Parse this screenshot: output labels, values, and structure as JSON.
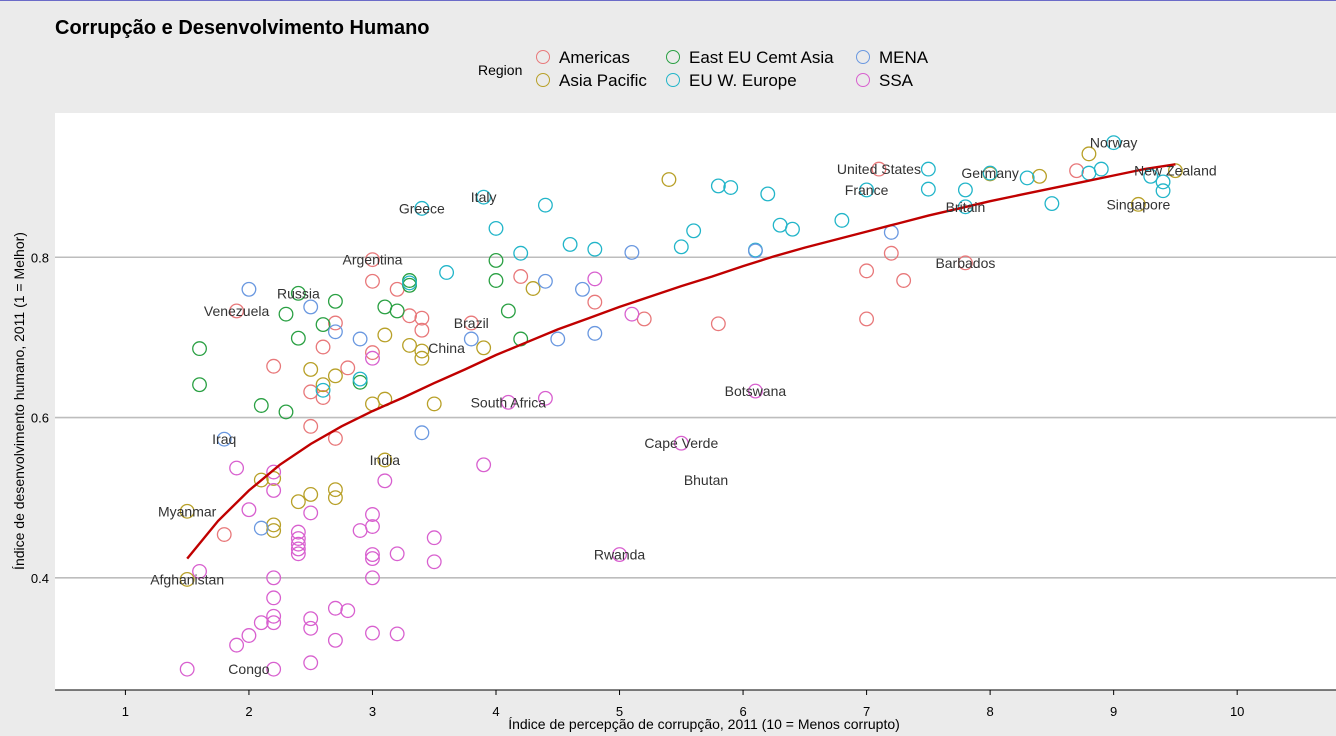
{
  "title": "Corrupção e Desenvolvimento Humano",
  "legend": {
    "title": "Region",
    "items": [
      {
        "name": "Americas",
        "color": "#e8787a"
      },
      {
        "name": "Asia Pacific",
        "color": "#b8a028"
      },
      {
        "name": "East EU Cemt Asia",
        "color": "#2aa043"
      },
      {
        "name": "EU W. Europe",
        "color": "#22b5c9"
      },
      {
        "name": "MENA",
        "color": "#6a98e0"
      },
      {
        "name": "SSA",
        "color": "#d860cf"
      }
    ]
  },
  "chart_data": {
    "type": "scatter",
    "title": "Corrupção e Desenvolvimento Humano",
    "xlabel": "Índice de percepção de corrupção, 2011 (10 = Menos corrupto)",
    "ylabel": "Índice de desenvolvimento humano, 2011 (1 = Melhor)",
    "xlim": [
      0.43,
      10.8
    ],
    "ylim": [
      0.26,
      0.98
    ],
    "xticks": [
      1,
      2,
      3,
      4,
      5,
      6,
      7,
      8,
      9,
      10
    ],
    "yticks": [
      0.4,
      0.6,
      0.8
    ],
    "ytick_labels": [
      "0.4",
      "0.6",
      "0.8"
    ],
    "grid": "horizontal-major",
    "legend_position": "top",
    "colors": {
      "Americas": "#e8787a",
      "Asia Pacific": "#b8a028",
      "East EU Cemt Asia": "#2aa043",
      "EU W. Europe": "#22b5c9",
      "MENA": "#6a98e0",
      "SSA": "#d860cf"
    },
    "points": [
      [
        "Americas",
        1.9,
        0.733
      ],
      [
        "Americas",
        1.8,
        0.454
      ],
      [
        "Americas",
        2.2,
        0.664
      ],
      [
        "Americas",
        2.5,
        0.632
      ],
      [
        "Americas",
        2.5,
        0.589
      ],
      [
        "Americas",
        2.6,
        0.688
      ],
      [
        "Americas",
        2.6,
        0.625
      ],
      [
        "Americas",
        2.7,
        0.574
      ],
      [
        "Americas",
        2.7,
        0.718
      ],
      [
        "Americas",
        2.8,
        0.662
      ],
      [
        "Americas",
        3.0,
        0.797
      ],
      [
        "Americas",
        3.0,
        0.77
      ],
      [
        "Americas",
        3.0,
        0.681
      ],
      [
        "Americas",
        3.2,
        0.76
      ],
      [
        "Americas",
        3.3,
        0.727
      ],
      [
        "Americas",
        3.4,
        0.709
      ],
      [
        "Americas",
        3.4,
        0.724
      ],
      [
        "Americas",
        3.8,
        0.718
      ],
      [
        "Americas",
        4.2,
        0.776
      ],
      [
        "Americas",
        4.8,
        0.744
      ],
      [
        "Americas",
        5.2,
        0.723
      ],
      [
        "Americas",
        5.8,
        0.717
      ],
      [
        "Americas",
        7.0,
        0.783
      ],
      [
        "Americas",
        7.0,
        0.723
      ],
      [
        "Americas",
        7.1,
        0.91
      ],
      [
        "Americas",
        7.2,
        0.805
      ],
      [
        "Americas",
        7.3,
        0.771
      ],
      [
        "Americas",
        7.8,
        0.793
      ],
      [
        "Americas",
        8.7,
        0.908
      ],
      [
        "Asia Pacific",
        1.5,
        0.483
      ],
      [
        "Asia Pacific",
        1.5,
        0.398
      ],
      [
        "Asia Pacific",
        2.1,
        0.522
      ],
      [
        "Asia Pacific",
        2.2,
        0.459
      ],
      [
        "Asia Pacific",
        2.2,
        0.466
      ],
      [
        "Asia Pacific",
        2.2,
        0.524
      ],
      [
        "Asia Pacific",
        2.4,
        0.495
      ],
      [
        "Asia Pacific",
        2.5,
        0.66
      ],
      [
        "Asia Pacific",
        2.5,
        0.504
      ],
      [
        "Asia Pacific",
        2.6,
        0.641
      ],
      [
        "Asia Pacific",
        2.7,
        0.652
      ],
      [
        "Asia Pacific",
        2.7,
        0.51
      ],
      [
        "Asia Pacific",
        2.7,
        0.5
      ],
      [
        "Asia Pacific",
        3.0,
        0.617
      ],
      [
        "Asia Pacific",
        3.1,
        0.703
      ],
      [
        "Asia Pacific",
        3.1,
        0.547
      ],
      [
        "Asia Pacific",
        3.1,
        0.623
      ],
      [
        "Asia Pacific",
        3.3,
        0.69
      ],
      [
        "Asia Pacific",
        3.4,
        0.674
      ],
      [
        "Asia Pacific",
        3.4,
        0.683
      ],
      [
        "Asia Pacific",
        3.5,
        0.617
      ],
      [
        "Asia Pacific",
        3.9,
        0.687
      ],
      [
        "Asia Pacific",
        4.3,
        0.761
      ],
      [
        "Asia Pacific",
        5.4,
        0.897
      ],
      [
        "Asia Pacific",
        8.0,
        0.904
      ],
      [
        "Asia Pacific",
        8.4,
        0.901
      ],
      [
        "Asia Pacific",
        8.8,
        0.929
      ],
      [
        "Asia Pacific",
        9.2,
        0.866
      ],
      [
        "Asia Pacific",
        9.5,
        0.908
      ],
      [
        "East EU Cemt Asia",
        1.6,
        0.686
      ],
      [
        "East EU Cemt Asia",
        1.6,
        0.641
      ],
      [
        "East EU Cemt Asia",
        2.1,
        0.615
      ],
      [
        "East EU Cemt Asia",
        2.3,
        0.607
      ],
      [
        "East EU Cemt Asia",
        2.3,
        0.729
      ],
      [
        "East EU Cemt Asia",
        2.4,
        0.699
      ],
      [
        "East EU Cemt Asia",
        2.4,
        0.755
      ],
      [
        "East EU Cemt Asia",
        2.6,
        0.716
      ],
      [
        "East EU Cemt Asia",
        2.7,
        0.745
      ],
      [
        "East EU Cemt Asia",
        2.9,
        0.644
      ],
      [
        "East EU Cemt Asia",
        3.1,
        0.738
      ],
      [
        "East EU Cemt Asia",
        3.2,
        0.733
      ],
      [
        "East EU Cemt Asia",
        3.3,
        0.765
      ],
      [
        "East EU Cemt Asia",
        3.3,
        0.771
      ],
      [
        "East EU Cemt Asia",
        4.0,
        0.771
      ],
      [
        "East EU Cemt Asia",
        4.0,
        0.796
      ],
      [
        "East EU Cemt Asia",
        4.1,
        0.733
      ],
      [
        "East EU Cemt Asia",
        4.2,
        0.698
      ],
      [
        "EU W. Europe",
        2.6,
        0.634
      ],
      [
        "EU W. Europe",
        2.9,
        0.648
      ],
      [
        "EU W. Europe",
        3.3,
        0.768
      ],
      [
        "EU W. Europe",
        3.4,
        0.861
      ],
      [
        "EU W. Europe",
        3.6,
        0.781
      ],
      [
        "EU W. Europe",
        3.9,
        0.875
      ],
      [
        "EU W. Europe",
        4.0,
        0.836
      ],
      [
        "EU W. Europe",
        4.2,
        0.805
      ],
      [
        "EU W. Europe",
        4.4,
        0.865
      ],
      [
        "EU W. Europe",
        4.6,
        0.816
      ],
      [
        "EU W. Europe",
        4.8,
        0.81
      ],
      [
        "EU W. Europe",
        5.5,
        0.813
      ],
      [
        "EU W. Europe",
        5.6,
        0.833
      ],
      [
        "EU W. Europe",
        5.8,
        0.889
      ],
      [
        "EU W. Europe",
        5.9,
        0.887
      ],
      [
        "EU W. Europe",
        6.1,
        0.809
      ],
      [
        "EU W. Europe",
        6.2,
        0.879
      ],
      [
        "EU W. Europe",
        6.3,
        0.84
      ],
      [
        "EU W. Europe",
        6.4,
        0.835
      ],
      [
        "EU W. Europe",
        6.8,
        0.846
      ],
      [
        "EU W. Europe",
        7.0,
        0.884
      ],
      [
        "EU W. Europe",
        7.5,
        0.885
      ],
      [
        "EU W. Europe",
        7.5,
        0.91
      ],
      [
        "EU W. Europe",
        7.8,
        0.863
      ],
      [
        "EU W. Europe",
        7.8,
        0.884
      ],
      [
        "EU W. Europe",
        8.0,
        0.905
      ],
      [
        "EU W. Europe",
        8.3,
        0.899
      ],
      [
        "EU W. Europe",
        8.5,
        0.867
      ],
      [
        "EU W. Europe",
        8.8,
        0.905
      ],
      [
        "EU W. Europe",
        8.9,
        0.91
      ],
      [
        "EU W. Europe",
        9.0,
        0.943
      ],
      [
        "EU W. Europe",
        9.3,
        0.901
      ],
      [
        "EU W. Europe",
        9.4,
        0.894
      ],
      [
        "EU W. Europe",
        9.4,
        0.883
      ],
      [
        "MENA",
        1.8,
        0.573
      ],
      [
        "MENA",
        2.0,
        0.76
      ],
      [
        "MENA",
        2.1,
        0.462
      ],
      [
        "MENA",
        2.5,
        0.738
      ],
      [
        "MENA",
        2.7,
        0.707
      ],
      [
        "MENA",
        2.9,
        0.698
      ],
      [
        "MENA",
        3.4,
        0.581
      ],
      [
        "MENA",
        3.8,
        0.698
      ],
      [
        "MENA",
        4.4,
        0.77
      ],
      [
        "MENA",
        4.5,
        0.698
      ],
      [
        "MENA",
        4.7,
        0.76
      ],
      [
        "MENA",
        4.8,
        0.705
      ],
      [
        "MENA",
        5.1,
        0.806
      ],
      [
        "MENA",
        6.1,
        0.808
      ],
      [
        "MENA",
        7.2,
        0.831
      ],
      [
        "SSA",
        1.5,
        0.286
      ],
      [
        "SSA",
        1.6,
        0.408
      ],
      [
        "SSA",
        1.9,
        0.537
      ],
      [
        "SSA",
        1.9,
        0.316
      ],
      [
        "SSA",
        2.0,
        0.328
      ],
      [
        "SSA",
        2.0,
        0.485
      ],
      [
        "SSA",
        2.1,
        0.344
      ],
      [
        "SSA",
        2.2,
        0.286
      ],
      [
        "SSA",
        2.2,
        0.344
      ],
      [
        "SSA",
        2.2,
        0.352
      ],
      [
        "SSA",
        2.2,
        0.375
      ],
      [
        "SSA",
        2.2,
        0.4
      ],
      [
        "SSA",
        2.2,
        0.509
      ],
      [
        "SSA",
        2.2,
        0.532
      ],
      [
        "SSA",
        2.4,
        0.43
      ],
      [
        "SSA",
        2.4,
        0.436
      ],
      [
        "SSA",
        2.4,
        0.442
      ],
      [
        "SSA",
        2.4,
        0.449
      ],
      [
        "SSA",
        2.4,
        0.457
      ],
      [
        "SSA",
        2.5,
        0.294
      ],
      [
        "SSA",
        2.5,
        0.337
      ],
      [
        "SSA",
        2.5,
        0.349
      ],
      [
        "SSA",
        2.5,
        0.481
      ],
      [
        "SSA",
        2.7,
        0.322
      ],
      [
        "SSA",
        2.7,
        0.362
      ],
      [
        "SSA",
        2.8,
        0.359
      ],
      [
        "SSA",
        2.9,
        0.459
      ],
      [
        "SSA",
        3.0,
        0.331
      ],
      [
        "SSA",
        3.0,
        0.4
      ],
      [
        "SSA",
        3.0,
        0.424
      ],
      [
        "SSA",
        3.0,
        0.429
      ],
      [
        "SSA",
        3.0,
        0.464
      ],
      [
        "SSA",
        3.0,
        0.479
      ],
      [
        "SSA",
        3.0,
        0.674
      ],
      [
        "SSA",
        3.1,
        0.521
      ],
      [
        "SSA",
        3.2,
        0.33
      ],
      [
        "SSA",
        3.2,
        0.43
      ],
      [
        "SSA",
        3.5,
        0.42
      ],
      [
        "SSA",
        3.5,
        0.45
      ],
      [
        "SSA",
        3.9,
        0.541
      ],
      [
        "SSA",
        4.1,
        0.619
      ],
      [
        "SSA",
        4.4,
        0.624
      ],
      [
        "SSA",
        4.8,
        0.773
      ],
      [
        "SSA",
        5.0,
        0.429
      ],
      [
        "SSA",
        5.1,
        0.729
      ],
      [
        "SSA",
        5.5,
        0.568
      ],
      [
        "SSA",
        6.1,
        0.633
      ]
    ],
    "point_labels": [
      {
        "text": "Norway",
        "x": 9.0,
        "y": 0.943
      },
      {
        "text": "United States",
        "x": 7.1,
        "y": 0.91
      },
      {
        "text": "Germany",
        "x": 8.0,
        "y": 0.905
      },
      {
        "text": "New Zealand",
        "x": 9.5,
        "y": 0.908
      },
      {
        "text": "France",
        "x": 7.0,
        "y": 0.884
      },
      {
        "text": "Britain",
        "x": 7.8,
        "y": 0.863
      },
      {
        "text": "Singapore",
        "x": 9.2,
        "y": 0.866
      },
      {
        "text": "Italy",
        "x": 3.9,
        "y": 0.875
      },
      {
        "text": "Greece",
        "x": 3.4,
        "y": 0.861
      },
      {
        "text": "Argentina",
        "x": 3.0,
        "y": 0.797
      },
      {
        "text": "Barbados",
        "x": 7.8,
        "y": 0.793
      },
      {
        "text": "Russia",
        "x": 2.4,
        "y": 0.755
      },
      {
        "text": "Venezuela",
        "x": 1.9,
        "y": 0.733
      },
      {
        "text": "Brazil",
        "x": 3.8,
        "y": 0.718
      },
      {
        "text": "China",
        "x": 3.6,
        "y": 0.687
      },
      {
        "text": "Botswana",
        "x": 6.1,
        "y": 0.633
      },
      {
        "text": "South Africa",
        "x": 4.1,
        "y": 0.619
      },
      {
        "text": "Iraq",
        "x": 1.8,
        "y": 0.573
      },
      {
        "text": "Cape Verde",
        "x": 5.5,
        "y": 0.568
      },
      {
        "text": "India",
        "x": 3.1,
        "y": 0.547
      },
      {
        "text": "Bhutan",
        "x": 5.7,
        "y": 0.522
      },
      {
        "text": "Myanmar",
        "x": 1.5,
        "y": 0.483
      },
      {
        "text": "Rwanda",
        "x": 5.0,
        "y": 0.429
      },
      {
        "text": "Afghanistan",
        "x": 1.5,
        "y": 0.398
      },
      {
        "text": "Congo",
        "x": 2.0,
        "y": 0.286
      }
    ],
    "trend_line": {
      "color": "#c00000",
      "x": [
        1.5,
        1.75,
        2.0,
        2.25,
        2.5,
        2.75,
        3.0,
        3.25,
        3.5,
        3.75,
        4.0,
        4.25,
        4.5,
        4.75,
        5.0,
        5.25,
        5.5,
        5.75,
        6.0,
        6.25,
        6.5,
        6.75,
        7.0,
        7.25,
        7.5,
        7.75,
        8.0,
        8.25,
        8.5,
        8.75,
        9.0,
        9.25,
        9.5
      ],
      "y": [
        0.424,
        0.471,
        0.509,
        0.541,
        0.567,
        0.589,
        0.608,
        0.625,
        0.643,
        0.66,
        0.678,
        0.694,
        0.71,
        0.724,
        0.738,
        0.751,
        0.764,
        0.776,
        0.789,
        0.801,
        0.812,
        0.822,
        0.832,
        0.842,
        0.852,
        0.861,
        0.87,
        0.878,
        0.886,
        0.894,
        0.902,
        0.91,
        0.916
      ]
    }
  }
}
